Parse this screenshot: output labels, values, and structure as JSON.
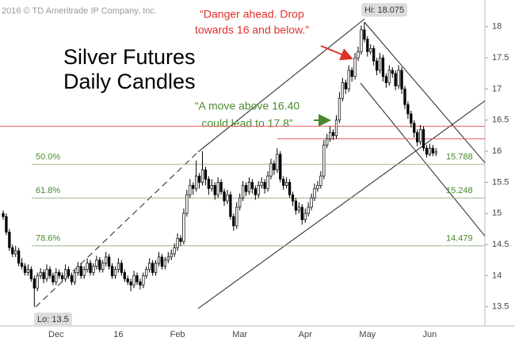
{
  "chart_data": {
    "type": "candlestick",
    "title": [
      "Silver Futures",
      "Daily Candles"
    ],
    "copyright": "2016 © TD Ameritrade IP Company, Inc.",
    "annotations": {
      "danger": [
        "“Danger ahead. Drop",
        "towards 16 and below.”"
      ],
      "move": [
        "“A move above 16.40",
        "could lead to 17.8”"
      ],
      "hi": "Hi: 18.075",
      "lo": "Lo: 13.5"
    },
    "categories": [
      null,
      null,
      null,
      null,
      null,
      null,
      null,
      null,
      null,
      null,
      null,
      null,
      null,
      null,
      null,
      null,
      null,
      "Dec",
      null,
      null,
      null,
      null,
      null,
      null,
      null,
      null,
      null,
      null,
      null,
      null,
      null,
      null,
      null,
      null,
      null,
      null,
      null,
      "16",
      null,
      null,
      null,
      null,
      null,
      null,
      null,
      null,
      null,
      null,
      null,
      null,
      null,
      null,
      null,
      null,
      null,
      null,
      "Feb",
      null,
      null,
      null,
      null,
      null,
      null,
      null,
      null,
      null,
      null,
      null,
      null,
      null,
      null,
      null,
      null,
      null,
      null,
      null,
      "Mar",
      null,
      null,
      null,
      null,
      null,
      null,
      null,
      null,
      null,
      null,
      null,
      null,
      null,
      null,
      null,
      null,
      null,
      null,
      null,
      null,
      "Apr",
      null,
      null,
      null,
      null,
      null,
      null,
      null,
      null,
      null,
      null,
      null,
      null,
      null,
      null,
      null,
      null,
      null,
      null,
      null,
      "May",
      null,
      null,
      null,
      null,
      null,
      null,
      null,
      null,
      null,
      null,
      null,
      null,
      null,
      null,
      null,
      null,
      null,
      null,
      null,
      "Jun",
      null,
      null
    ],
    "ohlc": [
      [
        15.0,
        15.05,
        14.9,
        14.95
      ],
      [
        14.95,
        15.0,
        14.65,
        14.7
      ],
      [
        14.7,
        14.75,
        14.4,
        14.45
      ],
      [
        14.45,
        14.5,
        14.3,
        14.35
      ],
      [
        14.35,
        14.48,
        14.3,
        14.4
      ],
      [
        14.4,
        14.45,
        14.15,
        14.2
      ],
      [
        14.2,
        14.28,
        14.1,
        14.15
      ],
      [
        14.15,
        14.2,
        14.0,
        14.05
      ],
      [
        14.05,
        14.18,
        14.0,
        14.1
      ],
      [
        14.1,
        14.15,
        13.9,
        13.95
      ],
      [
        13.95,
        14.0,
        13.5,
        13.8
      ],
      [
        13.8,
        14.05,
        13.75,
        14.0
      ],
      [
        14.0,
        14.12,
        13.95,
        14.05
      ],
      [
        14.05,
        14.1,
        13.88,
        13.95
      ],
      [
        13.95,
        14.18,
        13.9,
        14.1
      ],
      [
        14.1,
        14.15,
        13.95,
        14.0
      ],
      [
        14.0,
        14.05,
        13.85,
        13.9
      ],
      [
        13.9,
        14.12,
        13.85,
        14.05
      ],
      [
        14.05,
        14.1,
        13.95,
        14.0
      ],
      [
        14.0,
        14.05,
        13.9,
        13.95
      ],
      [
        13.95,
        14.18,
        13.9,
        14.1
      ],
      [
        14.1,
        14.15,
        13.95,
        14.0
      ],
      [
        14.0,
        14.05,
        13.85,
        13.9
      ],
      [
        13.9,
        14.1,
        13.85,
        14.05
      ],
      [
        14.05,
        14.22,
        14.0,
        14.15
      ],
      [
        14.15,
        14.2,
        13.95,
        14.0
      ],
      [
        14.0,
        14.15,
        13.95,
        14.1
      ],
      [
        14.1,
        14.28,
        14.05,
        14.2
      ],
      [
        14.2,
        14.25,
        14.0,
        14.05
      ],
      [
        14.05,
        14.2,
        14.0,
        14.15
      ],
      [
        14.15,
        14.32,
        14.1,
        14.25
      ],
      [
        14.25,
        14.3,
        14.05,
        14.1
      ],
      [
        14.1,
        14.25,
        14.05,
        14.2
      ],
      [
        14.2,
        14.38,
        14.15,
        14.3
      ],
      [
        14.3,
        14.35,
        14.1,
        14.15
      ],
      [
        14.15,
        14.2,
        13.95,
        14.0
      ],
      [
        14.0,
        14.15,
        13.95,
        14.1
      ],
      [
        14.1,
        14.28,
        14.05,
        14.2
      ],
      [
        14.2,
        14.25,
        14.0,
        14.05
      ],
      [
        14.05,
        14.1,
        13.9,
        13.95
      ],
      [
        13.95,
        14.0,
        13.85,
        13.9
      ],
      [
        13.9,
        13.95,
        13.75,
        13.85
      ],
      [
        13.85,
        14.08,
        13.8,
        14.0
      ],
      [
        14.0,
        14.05,
        13.85,
        13.9
      ],
      [
        13.9,
        13.95,
        13.78,
        13.85
      ],
      [
        13.85,
        14.05,
        13.8,
        14.0
      ],
      [
        14.0,
        14.15,
        13.95,
        14.1
      ],
      [
        14.1,
        14.28,
        14.05,
        14.2
      ],
      [
        14.2,
        14.25,
        14.0,
        14.05
      ],
      [
        14.05,
        14.25,
        14.0,
        14.2
      ],
      [
        14.2,
        14.38,
        14.15,
        14.3
      ],
      [
        14.3,
        14.35,
        14.1,
        14.15
      ],
      [
        14.15,
        14.3,
        14.1,
        14.25
      ],
      [
        14.25,
        14.38,
        14.2,
        14.3
      ],
      [
        14.3,
        14.42,
        14.25,
        14.35
      ],
      [
        14.35,
        14.52,
        14.3,
        14.45
      ],
      [
        14.45,
        14.68,
        14.4,
        14.6
      ],
      [
        14.6,
        14.65,
        14.48,
        14.55
      ],
      [
        14.55,
        15.08,
        14.5,
        15.0
      ],
      [
        15.0,
        15.38,
        14.95,
        15.3
      ],
      [
        15.3,
        15.55,
        15.25,
        15.45
      ],
      [
        15.45,
        15.5,
        15.3,
        15.4
      ],
      [
        15.4,
        15.85,
        15.35,
        15.6
      ],
      [
        15.6,
        15.65,
        15.4,
        15.5
      ],
      [
        15.5,
        16.0,
        15.45,
        15.7
      ],
      [
        15.7,
        15.75,
        15.45,
        15.55
      ],
      [
        15.55,
        15.6,
        15.3,
        15.4
      ],
      [
        15.4,
        15.55,
        15.35,
        15.45
      ],
      [
        15.45,
        15.5,
        15.22,
        15.3
      ],
      [
        15.3,
        15.58,
        15.25,
        15.5
      ],
      [
        15.5,
        15.55,
        15.3,
        15.35
      ],
      [
        15.35,
        15.4,
        15.12,
        15.2
      ],
      [
        15.2,
        15.38,
        15.15,
        15.3
      ],
      [
        15.3,
        15.35,
        14.9,
        14.95
      ],
      [
        14.95,
        15.0,
        14.72,
        14.8
      ],
      [
        14.8,
        15.18,
        14.75,
        15.1
      ],
      [
        15.1,
        15.32,
        15.05,
        15.25
      ],
      [
        15.25,
        15.52,
        15.2,
        15.45
      ],
      [
        15.45,
        15.5,
        15.28,
        15.35
      ],
      [
        15.35,
        15.58,
        15.3,
        15.5
      ],
      [
        15.5,
        15.55,
        15.32,
        15.4
      ],
      [
        15.4,
        15.45,
        15.22,
        15.3
      ],
      [
        15.3,
        15.52,
        15.25,
        15.45
      ],
      [
        15.45,
        15.58,
        15.4,
        15.5
      ],
      [
        15.5,
        15.55,
        15.32,
        15.4
      ],
      [
        15.4,
        15.68,
        15.35,
        15.6
      ],
      [
        15.6,
        15.88,
        15.55,
        15.8
      ],
      [
        15.8,
        15.85,
        15.62,
        15.7
      ],
      [
        15.7,
        16.05,
        15.65,
        15.95
      ],
      [
        15.95,
        16.0,
        15.5,
        15.55
      ],
      [
        15.55,
        15.6,
        15.38,
        15.45
      ],
      [
        15.45,
        15.58,
        15.4,
        15.5
      ],
      [
        15.5,
        15.55,
        15.25,
        15.3
      ],
      [
        15.3,
        15.35,
        15.12,
        15.2
      ],
      [
        15.2,
        15.25,
        14.98,
        15.05
      ],
      [
        15.05,
        15.18,
        15.0,
        15.1
      ],
      [
        15.1,
        15.15,
        14.82,
        14.9
      ],
      [
        14.9,
        15.08,
        14.85,
        15.0
      ],
      [
        15.0,
        15.18,
        14.95,
        15.1
      ],
      [
        15.1,
        15.32,
        15.05,
        15.25
      ],
      [
        15.25,
        15.48,
        15.2,
        15.4
      ],
      [
        15.4,
        15.52,
        15.35,
        15.45
      ],
      [
        15.45,
        15.68,
        15.4,
        15.6
      ],
      [
        15.6,
        16.18,
        15.55,
        16.1
      ],
      [
        16.1,
        16.28,
        16.05,
        16.2
      ],
      [
        16.2,
        16.4,
        16.15,
        16.3
      ],
      [
        16.3,
        16.35,
        16.18,
        16.25
      ],
      [
        16.25,
        16.58,
        16.2,
        16.5
      ],
      [
        16.5,
        16.95,
        16.45,
        16.85
      ],
      [
        16.85,
        17.18,
        16.8,
        17.1
      ],
      [
        17.1,
        17.15,
        16.92,
        17.0
      ],
      [
        17.0,
        17.38,
        16.95,
        17.3
      ],
      [
        17.3,
        17.35,
        17.12,
        17.2
      ],
      [
        17.2,
        17.58,
        17.15,
        17.5
      ],
      [
        17.5,
        17.68,
        17.45,
        17.6
      ],
      [
        17.6,
        18.02,
        17.55,
        17.95
      ],
      [
        17.95,
        18.075,
        17.75,
        17.8
      ],
      [
        17.8,
        17.85,
        17.52,
        17.6
      ],
      [
        17.6,
        17.72,
        17.55,
        17.65
      ],
      [
        17.65,
        17.7,
        17.38,
        17.45
      ],
      [
        17.45,
        17.5,
        17.22,
        17.3
      ],
      [
        17.3,
        17.58,
        17.25,
        17.5
      ],
      [
        17.5,
        17.55,
        17.12,
        17.2
      ],
      [
        17.2,
        17.25,
        17.02,
        17.1
      ],
      [
        17.1,
        17.38,
        17.05,
        17.3
      ],
      [
        17.3,
        17.35,
        17.18,
        17.25
      ],
      [
        17.25,
        17.3,
        16.98,
        17.05
      ],
      [
        17.05,
        17.38,
        17.0,
        17.3
      ],
      [
        17.3,
        17.35,
        16.92,
        17.0
      ],
      [
        17.0,
        17.05,
        16.68,
        16.75
      ],
      [
        16.75,
        16.8,
        16.52,
        16.6
      ],
      [
        16.6,
        16.65,
        16.38,
        16.45
      ],
      [
        16.45,
        16.5,
        16.22,
        16.3
      ],
      [
        16.3,
        16.35,
        16.08,
        16.15
      ],
      [
        16.15,
        16.42,
        16.1,
        16.35
      ],
      [
        16.35,
        16.4,
        16.0,
        16.05
      ],
      [
        16.05,
        16.1,
        15.9,
        15.95
      ],
      [
        15.95,
        16.12,
        15.92,
        16.05
      ],
      [
        16.05,
        16.1,
        15.92,
        15.97
      ],
      [
        15.97,
        16.05,
        15.92,
        16.0
      ]
    ],
    "fib_levels": [
      {
        "name": "50.0%",
        "value": 15.788
      },
      {
        "name": "61.8%",
        "value": 15.248
      },
      {
        "name": "78.6%",
        "value": 14.479
      }
    ],
    "fib_color": "#9bb58e",
    "levels": [
      {
        "value": 16.4,
        "color": "#e05a5a"
      },
      {
        "value": 16.2,
        "color": "#e05a5a"
      }
    ],
    "candle_color": "#000000",
    "ylim": [
      12.95,
      18.43
    ],
    "yticks": [
      13.5,
      14,
      14.5,
      15,
      15.5,
      16,
      16.5,
      17,
      17.5,
      18
    ]
  }
}
